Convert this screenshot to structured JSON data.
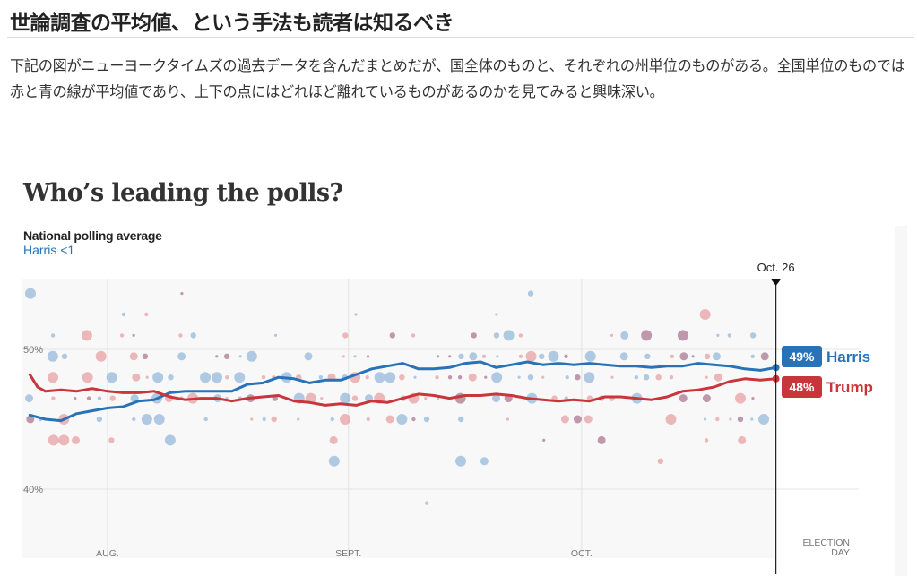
{
  "article": {
    "title": "世論調査の平均値、という手法も読者は知るべき",
    "body": "下記の図がニューヨークタイムズの過去データを含んだまとめだが、国全体のものと、それぞれの州単位のものがある。全国単位のものでは赤と青の線が平均値であり、上下の点にはどれほど離れているものがあるのかを見てみると興味深い。"
  },
  "chart_data": {
    "type": "line",
    "title": "Who’s leading the polls?",
    "subtitle": "National polling average",
    "leader_text": "Harris <1",
    "xlabel": "",
    "ylabel": "",
    "x_axis": {
      "unit": "days since Aug. 1",
      "range": [
        -10,
        96
      ],
      "ticks": [
        {
          "label": "AUG.",
          "value": 0
        },
        {
          "label": "SEPT.",
          "value": 31
        },
        {
          "label": "OCT.",
          "value": 61
        },
        {
          "label": "ELECTION DAY",
          "value": 96
        }
      ]
    },
    "y_axis": {
      "unit": "percent",
      "range": [
        35,
        55
      ],
      "gridlines": [
        {
          "label": "50%",
          "value": 50
        },
        {
          "label": "40%",
          "value": 40
        }
      ]
    },
    "current_marker": {
      "label": "Oct. 26",
      "value": 86
    },
    "series": [
      {
        "name": "Harris",
        "color": "#2873b7",
        "end_label": "49%",
        "points": [
          [
            -10,
            45.3
          ],
          [
            -8,
            45.0
          ],
          [
            -6,
            44.9
          ],
          [
            -4,
            45.4
          ],
          [
            -2,
            45.6
          ],
          [
            0,
            45.8
          ],
          [
            2,
            45.9
          ],
          [
            4,
            46.3
          ],
          [
            6,
            46.4
          ],
          [
            8,
            46.9
          ],
          [
            10,
            47.0
          ],
          [
            12,
            47.0
          ],
          [
            14,
            47.0
          ],
          [
            16,
            47.0
          ],
          [
            18,
            47.5
          ],
          [
            20,
            47.6
          ],
          [
            22,
            48.0
          ],
          [
            24,
            47.9
          ],
          [
            26,
            47.6
          ],
          [
            28,
            47.8
          ],
          [
            30,
            47.8
          ],
          [
            32,
            48.2
          ],
          [
            34,
            48.6
          ],
          [
            36,
            48.8
          ],
          [
            38,
            49.0
          ],
          [
            40,
            48.6
          ],
          [
            42,
            48.6
          ],
          [
            44,
            48.7
          ],
          [
            46,
            49.0
          ],
          [
            48,
            49.1
          ],
          [
            50,
            48.7
          ],
          [
            52,
            48.9
          ],
          [
            54,
            49.1
          ],
          [
            56,
            48.9
          ],
          [
            58,
            49.0
          ],
          [
            60,
            48.9
          ],
          [
            62,
            49.0
          ],
          [
            64,
            48.9
          ],
          [
            66,
            48.8
          ],
          [
            68,
            48.8
          ],
          [
            70,
            48.7
          ],
          [
            72,
            48.8
          ],
          [
            74,
            48.8
          ],
          [
            76,
            49.0
          ],
          [
            78,
            48.9
          ],
          [
            80,
            48.8
          ],
          [
            82,
            48.6
          ],
          [
            84,
            48.5
          ],
          [
            86,
            48.7
          ]
        ]
      },
      {
        "name": "Trump",
        "color": "#c8363b",
        "end_label": "48%",
        "points": [
          [
            -10,
            48.2
          ],
          [
            -9,
            47.3
          ],
          [
            -8,
            47.0
          ],
          [
            -6,
            47.1
          ],
          [
            -4,
            47.0
          ],
          [
            -2,
            47.2
          ],
          [
            0,
            47.0
          ],
          [
            2,
            46.9
          ],
          [
            4,
            46.9
          ],
          [
            6,
            47.0
          ],
          [
            8,
            46.6
          ],
          [
            10,
            46.4
          ],
          [
            12,
            46.5
          ],
          [
            14,
            46.5
          ],
          [
            16,
            46.3
          ],
          [
            18,
            46.5
          ],
          [
            20,
            46.6
          ],
          [
            22,
            46.7
          ],
          [
            24,
            46.3
          ],
          [
            26,
            46.2
          ],
          [
            28,
            46.0
          ],
          [
            30,
            46.1
          ],
          [
            32,
            46.0
          ],
          [
            34,
            46.3
          ],
          [
            36,
            46.2
          ],
          [
            38,
            46.5
          ],
          [
            40,
            46.8
          ],
          [
            42,
            46.7
          ],
          [
            44,
            46.5
          ],
          [
            46,
            46.7
          ],
          [
            48,
            46.7
          ],
          [
            50,
            46.8
          ],
          [
            52,
            46.7
          ],
          [
            54,
            46.5
          ],
          [
            56,
            46.4
          ],
          [
            58,
            46.3
          ],
          [
            60,
            46.4
          ],
          [
            62,
            46.3
          ],
          [
            64,
            46.6
          ],
          [
            66,
            46.6
          ],
          [
            68,
            46.5
          ],
          [
            70,
            46.4
          ],
          [
            72,
            46.6
          ],
          [
            74,
            47.0
          ],
          [
            76,
            47.1
          ],
          [
            78,
            47.3
          ],
          [
            80,
            47.7
          ],
          [
            82,
            47.9
          ],
          [
            84,
            47.8
          ],
          [
            86,
            47.9
          ]
        ]
      }
    ],
    "legend": "right-end labels"
  }
}
